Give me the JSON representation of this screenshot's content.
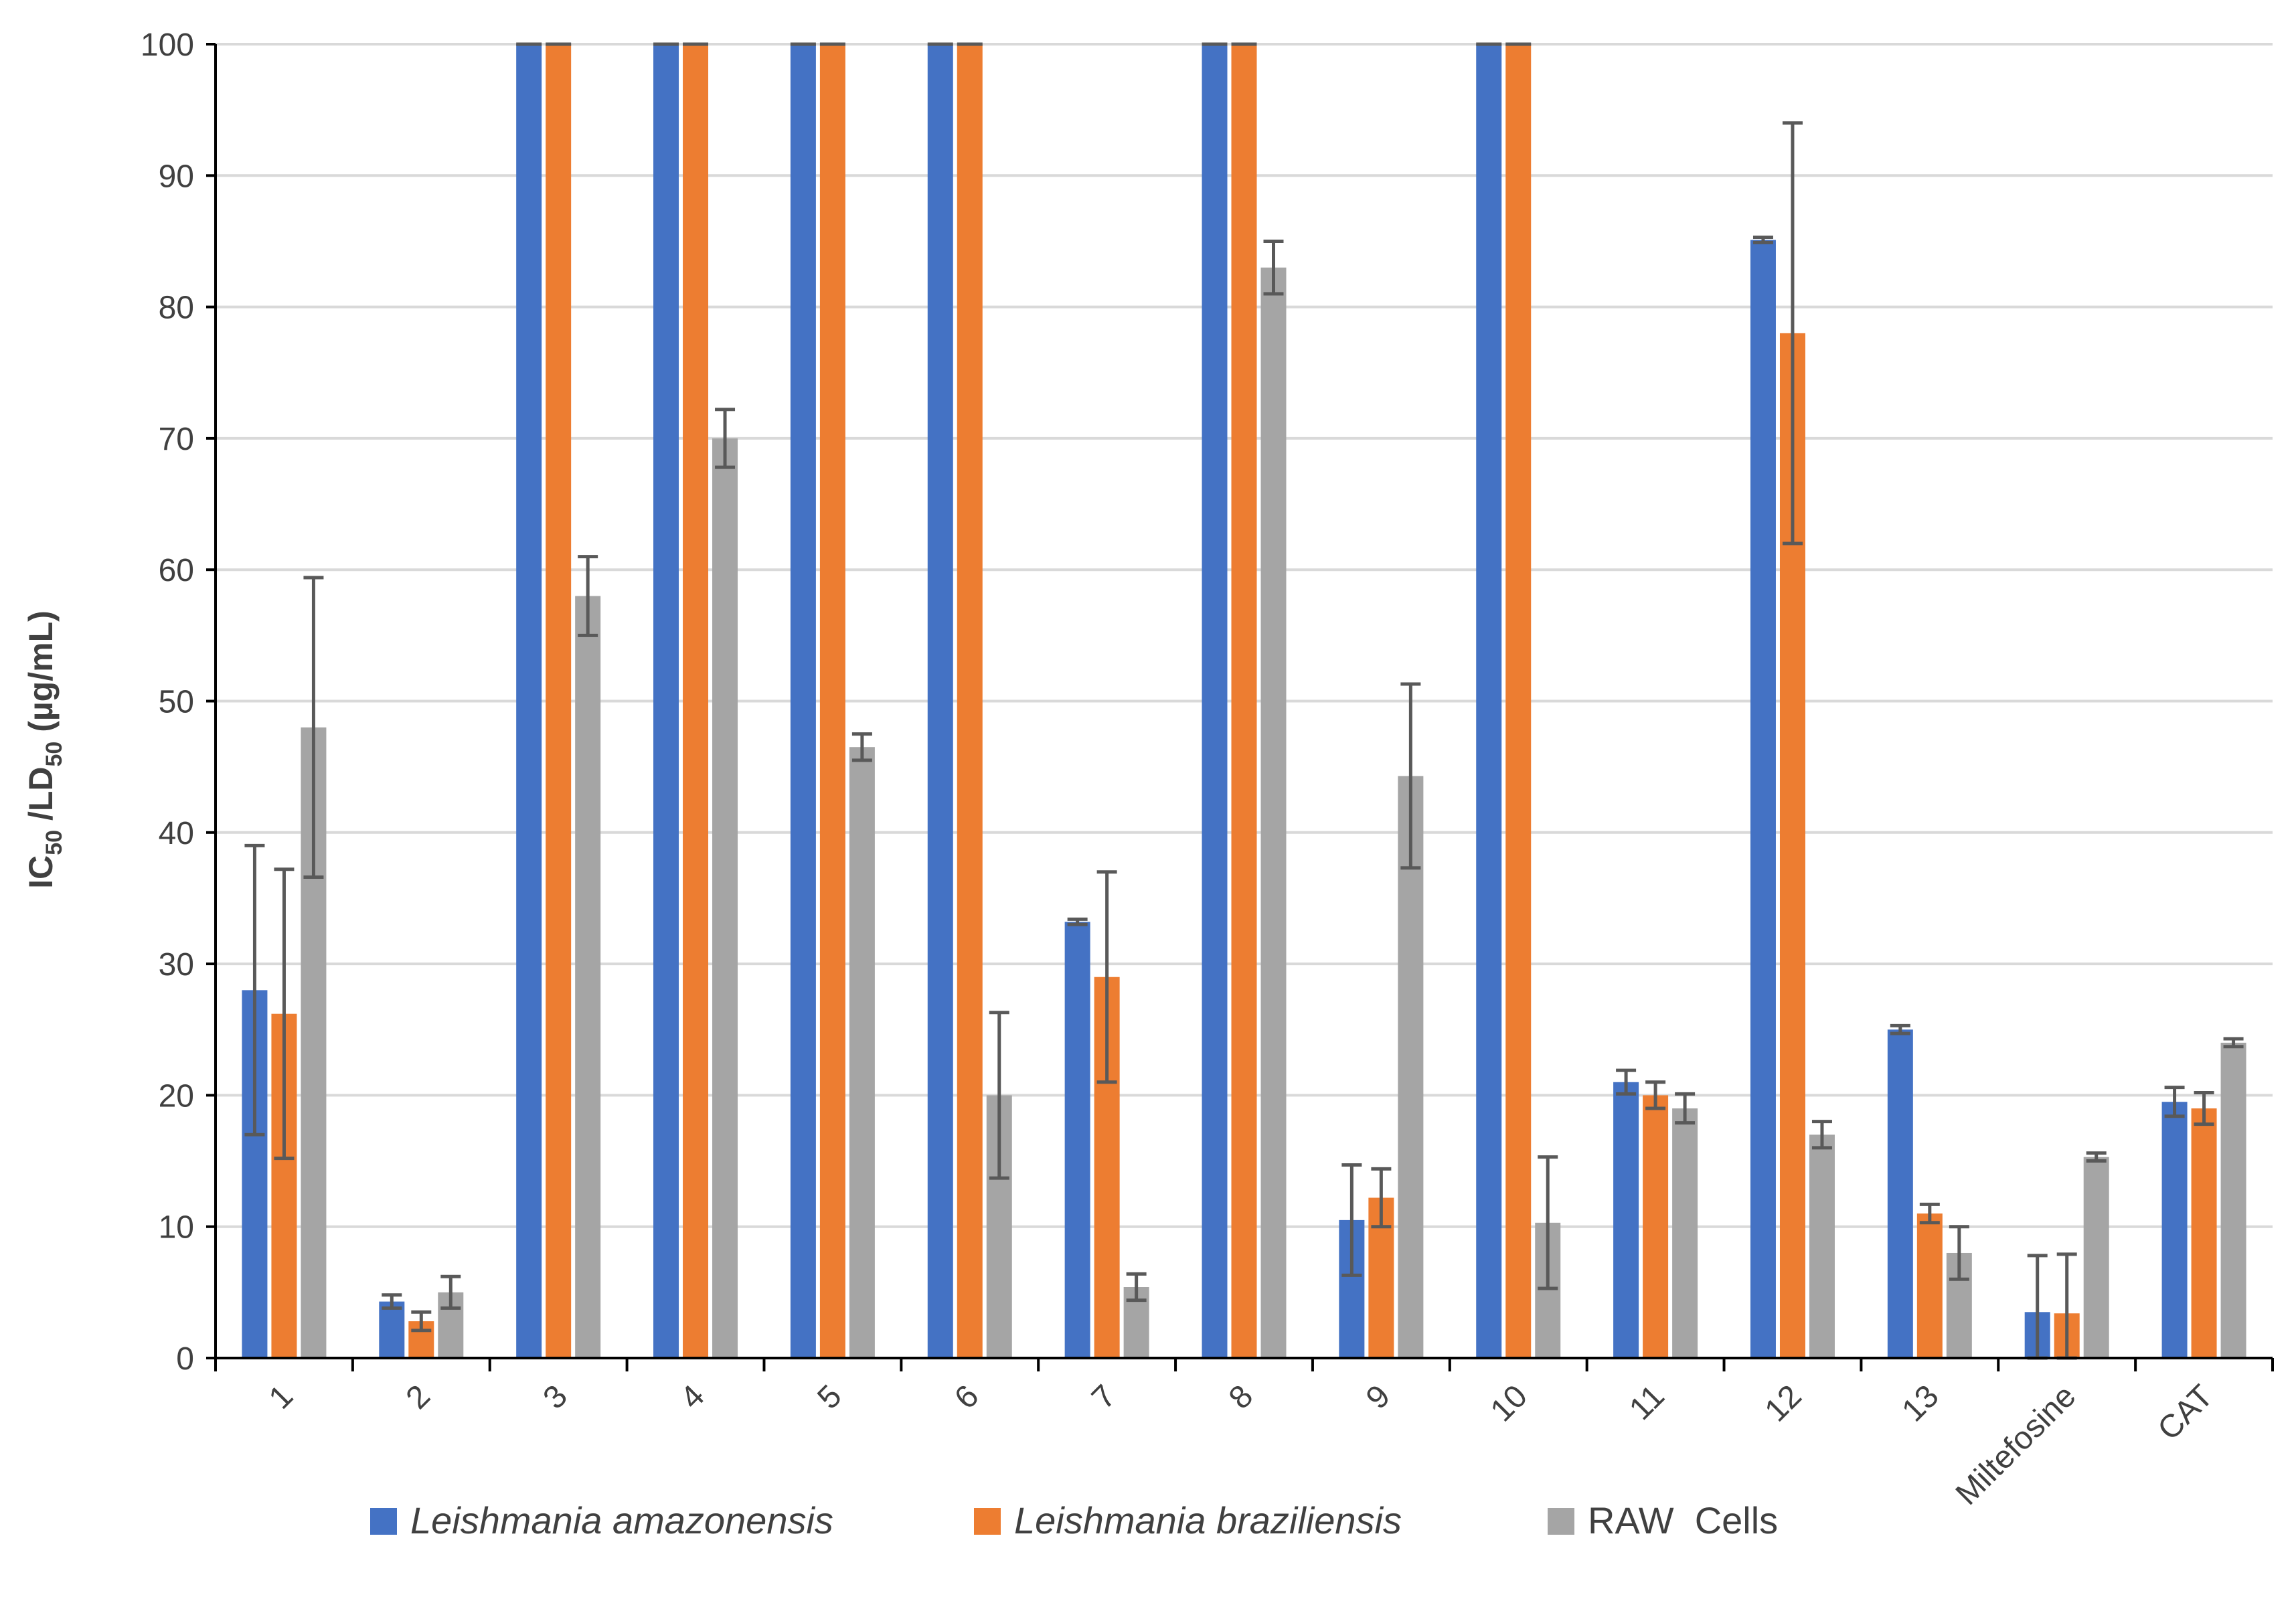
{
  "chart_data": {
    "type": "bar",
    "title": "",
    "xlabel": "",
    "ylabel": {
      "main": "IC",
      "sub1": "50",
      "mid": " /LD",
      "sub2": "50",
      "unit": " (µg/mL)"
    },
    "ylim": [
      0,
      100
    ],
    "yticks": [
      "0",
      "10",
      "20",
      "30",
      "40",
      "50",
      "60",
      "70",
      "80",
      "90",
      "100"
    ],
    "grid": true,
    "legend_position": "bottom",
    "categories": [
      "1",
      "2",
      "3",
      "4",
      "5",
      "6",
      "7",
      "8",
      "9",
      "10",
      "11",
      "12",
      "13",
      "Miltefosine",
      "CAT"
    ],
    "series": [
      {
        "name": "Leishmania amazonensis",
        "italic": true,
        "color": "#4472C4",
        "values": [
          28,
          4.3,
          100,
          100,
          100,
          100,
          33.2,
          100,
          10.5,
          100,
          21,
          85.1,
          25,
          3.5,
          19.5
        ],
        "errors": [
          11,
          0.5,
          0,
          0,
          0,
          0,
          0.2,
          0,
          4.2,
          0,
          0.9,
          0.2,
          0.3,
          4.3,
          1.1
        ]
      },
      {
        "name": "Leishmania braziliensis",
        "italic": true,
        "color": "#ED7D31",
        "values": [
          26.2,
          2.8,
          100,
          100,
          100,
          100,
          29,
          100,
          12.2,
          100,
          20,
          78,
          11,
          3.4,
          19
        ],
        "errors": [
          11,
          0.7,
          0,
          0,
          0,
          0,
          8,
          0,
          2.2,
          0,
          1,
          16,
          0.7,
          4.5,
          1.2
        ]
      },
      {
        "name": "RAW  Cells",
        "italic": false,
        "color": "#A5A5A5",
        "values": [
          48,
          5,
          58,
          70,
          46.5,
          20,
          5.4,
          83,
          44.3,
          10.3,
          19,
          17,
          8,
          15.3,
          24
        ],
        "errors": [
          11.4,
          1.2,
          3,
          2.2,
          1,
          6.3,
          1,
          2,
          7,
          5,
          1.1,
          1,
          2,
          0.3,
          0.3
        ]
      }
    ]
  },
  "error_bar_color": "#595959",
  "axis_color": "#000000",
  "grid_color": "#D9D9D9"
}
